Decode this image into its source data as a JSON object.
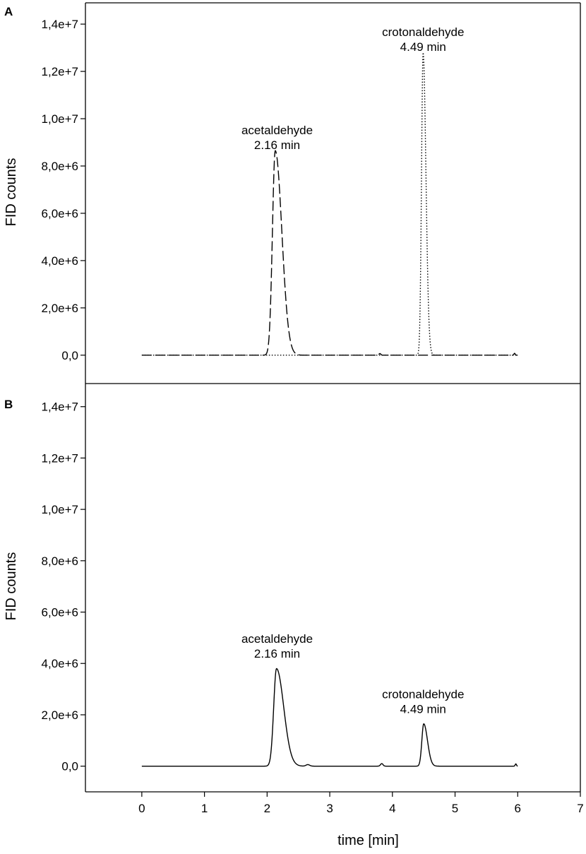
{
  "chart_data": [
    {
      "type": "line",
      "panel_label": "A",
      "ylabel": "FID counts",
      "xlabel": "",
      "xlim": [
        -0.9,
        7
      ],
      "ylim": [
        -1200000,
        14900000
      ],
      "y_ticks": [
        0,
        2000000,
        4000000,
        6000000,
        8000000,
        10000000,
        12000000,
        14000000
      ],
      "y_tick_labels": [
        "0,0",
        "2,0e+6",
        "4,0e+6",
        "6,0e+6",
        "8,0e+6",
        "1,0e+7",
        "1,2e+7",
        "1,4e+7"
      ],
      "series": [
        {
          "style": "dashed",
          "baseline": 0,
          "peaks": [
            {
              "center": 2.13,
              "height": 8650000,
              "sigma": 0.045,
              "tail": 0.06
            },
            {
              "center": 3.8,
              "height": 70000,
              "sigma": 0.015,
              "tail": 0.0
            },
            {
              "center": 5.95,
              "height": 80000,
              "sigma": 0.01,
              "tail": 0.0
            }
          ]
        },
        {
          "style": "dotted",
          "baseline": 0,
          "peaks": [
            {
              "center": 4.49,
              "height": 12800000,
              "sigma": 0.025,
              "tail": 0.02
            }
          ]
        }
      ],
      "annotations": [
        {
          "lines": [
            "acetaldehyde",
            "2.16 min"
          ],
          "x": 2.16,
          "y": 9350000
        },
        {
          "lines": [
            "crotonaldehyde",
            "4.49 min"
          ],
          "x": 4.49,
          "y": 13500000
        }
      ]
    },
    {
      "type": "line",
      "panel_label": "B",
      "ylabel": "FID counts",
      "xlabel": "time [min]",
      "xlim": [
        -0.9,
        7
      ],
      "ylim": [
        -1000000,
        14900000
      ],
      "x_ticks": [
        0,
        1,
        2,
        3,
        4,
        5,
        6,
        7
      ],
      "x_tick_labels": [
        "0",
        "1",
        "2",
        "3",
        "4",
        "5",
        "6",
        "7"
      ],
      "y_ticks": [
        0,
        2000000,
        4000000,
        6000000,
        8000000,
        10000000,
        12000000,
        14000000
      ],
      "y_tick_labels": [
        "0,0",
        "2,0e+6",
        "4,0e+6",
        "6,0e+6",
        "8,0e+6",
        "1,0e+7",
        "1,2e+7",
        "1,4e+7"
      ],
      "series": [
        {
          "style": "solid",
          "baseline": 0,
          "peaks": [
            {
              "center": 2.15,
              "height": 3800000,
              "sigma": 0.045,
              "tail": 0.07
            },
            {
              "center": 2.65,
              "height": 60000,
              "sigma": 0.03,
              "tail": 0.0
            },
            {
              "center": 3.83,
              "height": 100000,
              "sigma": 0.02,
              "tail": 0.0
            },
            {
              "center": 4.5,
              "height": 1650000,
              "sigma": 0.03,
              "tail": 0.03
            },
            {
              "center": 5.97,
              "height": 90000,
              "sigma": 0.01,
              "tail": 0.0
            }
          ]
        }
      ],
      "annotations": [
        {
          "lines": [
            "acetaldehyde",
            "2.16 min"
          ],
          "x": 2.16,
          "y": 4800000
        },
        {
          "lines": [
            "crotonaldehyde",
            "4.49 min"
          ],
          "x": 4.49,
          "y": 2650000
        }
      ]
    }
  ]
}
